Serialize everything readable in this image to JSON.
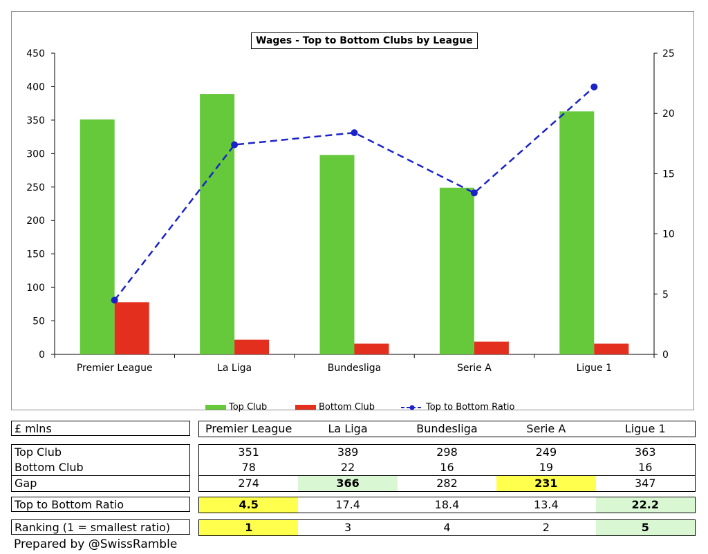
{
  "chart_data": {
    "type": "bar",
    "title": "Wages - Top to Bottom Clubs by League",
    "categories": [
      "Premier League",
      "La Liga",
      "Bundesliga",
      "Serie A",
      "Ligue 1"
    ],
    "series": [
      {
        "name": "Top Club",
        "type": "bar",
        "axis": "left",
        "color": "#66c93b",
        "values": [
          351,
          389,
          298,
          249,
          363
        ]
      },
      {
        "name": "Bottom Club",
        "type": "bar",
        "axis": "left",
        "color": "#e3301e",
        "values": [
          78,
          22,
          16,
          19,
          16
        ]
      },
      {
        "name": "Top to Bottom Ratio",
        "type": "line",
        "axis": "right",
        "color": "#1a22c8",
        "style": "dashed",
        "values": [
          4.5,
          17.4,
          18.4,
          13.4,
          22.2
        ]
      }
    ],
    "ylim": [
      0,
      450
    ],
    "y_ticks": [
      "0",
      "50",
      "100",
      "150",
      "200",
      "250",
      "300",
      "350",
      "400",
      "450"
    ],
    "y2lim": [
      0,
      25
    ],
    "y2_ticks": [
      "0",
      "5",
      "10",
      "15",
      "20",
      "25"
    ],
    "grid": false,
    "legend_position": "bottom"
  },
  "table": {
    "unit_label": "£ mlns",
    "headers": [
      "Premier League",
      "La Liga",
      "Bundesliga",
      "Serie A",
      "Ligue 1"
    ],
    "top_label": "Top Club",
    "top": [
      "351",
      "389",
      "298",
      "249",
      "363"
    ],
    "bottom_label": "Bottom Club",
    "bottom": [
      "78",
      "22",
      "16",
      "19",
      "16"
    ],
    "gap_label": "Gap",
    "gap": [
      "274",
      "366",
      "282",
      "231",
      "347"
    ],
    "ratio_label": "Top to Bottom Ratio",
    "ratio": [
      "4.5",
      "17.4",
      "18.4",
      "13.4",
      "22.2"
    ],
    "ranking_label": "Ranking (1 = smallest ratio)",
    "ranking": [
      "1",
      "3",
      "4",
      "2",
      "5"
    ],
    "highlight_colors": {
      "lowest": "#ffff4d",
      "highest": "#d9f7d3"
    }
  },
  "footer": "Prepared by @SwissRamble"
}
